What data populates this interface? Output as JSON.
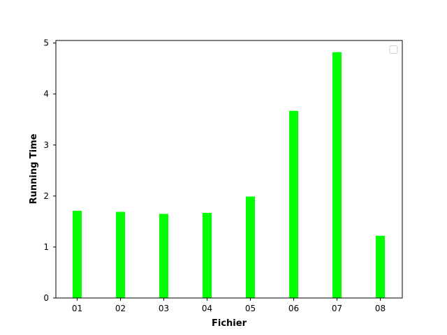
{
  "chart_data": {
    "type": "bar",
    "categories": [
      "01",
      "02",
      "03",
      "04",
      "05",
      "06",
      "07",
      "08"
    ],
    "values": [
      1.71,
      1.69,
      1.65,
      1.67,
      1.99,
      3.67,
      4.82,
      1.22
    ],
    "title": "",
    "xlabel": "Fichier",
    "ylabel": "Running Time",
    "ylim": [
      0,
      5.05
    ],
    "yticks": [
      0,
      1,
      2,
      3,
      4,
      5
    ],
    "grid": false,
    "legend": "top-right",
    "bar_color": "#00ff00"
  }
}
